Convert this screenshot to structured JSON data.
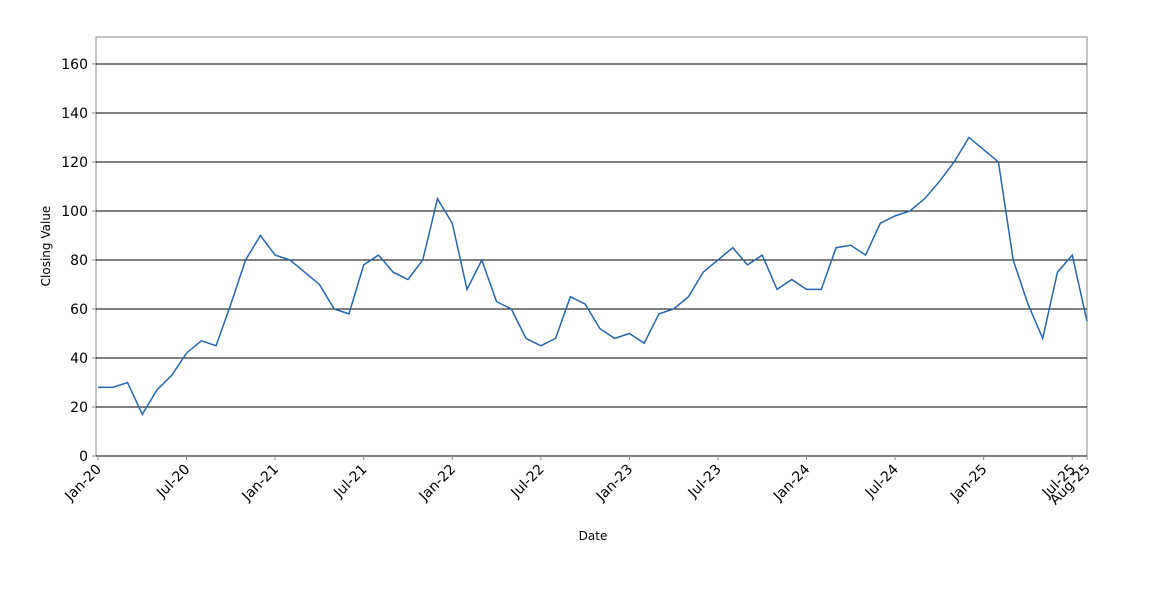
{
  "chart_data": {
    "type": "line",
    "x_label": "Date",
    "y_label": "Closing Value",
    "x": [
      "Jan-20",
      "Feb-20",
      "Mar-20",
      "Apr-20",
      "May-20",
      "Jun-20",
      "Jul-20",
      "Aug-20",
      "Sep-20",
      "Oct-20",
      "Nov-20",
      "Dec-20",
      "Jan-21",
      "Feb-21",
      "Mar-21",
      "Apr-21",
      "May-21",
      "Jun-21",
      "Jul-21",
      "Aug-21",
      "Sep-21",
      "Oct-21",
      "Nov-21",
      "Dec-21",
      "Jan-22",
      "Feb-22",
      "Mar-22",
      "Apr-22",
      "May-22",
      "Jun-22",
      "Jul-22",
      "Aug-22",
      "Sep-22",
      "Oct-22",
      "Nov-22",
      "Dec-22",
      "Jan-23",
      "Feb-23",
      "Mar-23",
      "Apr-23",
      "May-23",
      "Jun-23",
      "Jul-23",
      "Aug-23",
      "Sep-23",
      "Oct-23",
      "Nov-23",
      "Dec-23",
      "Jan-24",
      "Feb-24",
      "Mar-24",
      "Apr-24",
      "May-24",
      "Jun-24",
      "Jul-24",
      "Aug-24",
      "Sep-24",
      "Oct-24",
      "Nov-24",
      "Dec-24",
      "Jan-25",
      "Feb-25",
      "Mar-25",
      "Apr-25",
      "May-25",
      "Jun-25",
      "Jul-25",
      "Aug-25"
    ],
    "series": [
      {
        "color": "#2566b0",
        "values": [
          28,
          28,
          30,
          17,
          27,
          33,
          42,
          47,
          45,
          62,
          80,
          90,
          82,
          80,
          75,
          70,
          60,
          58,
          78,
          82,
          75,
          72,
          80,
          105,
          95,
          68,
          80,
          63,
          60,
          48,
          45,
          48,
          65,
          62,
          52,
          48,
          50,
          46,
          58,
          60,
          65,
          75,
          80,
          85,
          78,
          82,
          68,
          72,
          68,
          68,
          85,
          86,
          82,
          95,
          98,
          100,
          105,
          112,
          120,
          130,
          125,
          120,
          80,
          62,
          48,
          75,
          82,
          55
        ]
      }
    ],
    "xticks": [
      "Jan-20",
      "Jul-20",
      "Jan-21",
      "Jul-21",
      "Jan-22",
      "Jul-22",
      "Jan-23",
      "Jul-23",
      "Jan-24",
      "Jul-24",
      "Jan-25",
      "Jul-25",
      "Aug-25"
    ],
    "ylim": [
      0,
      171
    ],
    "yticks": [
      0,
      20,
      40,
      60,
      80,
      100,
      120,
      140,
      160
    ],
    "grid": true
  }
}
